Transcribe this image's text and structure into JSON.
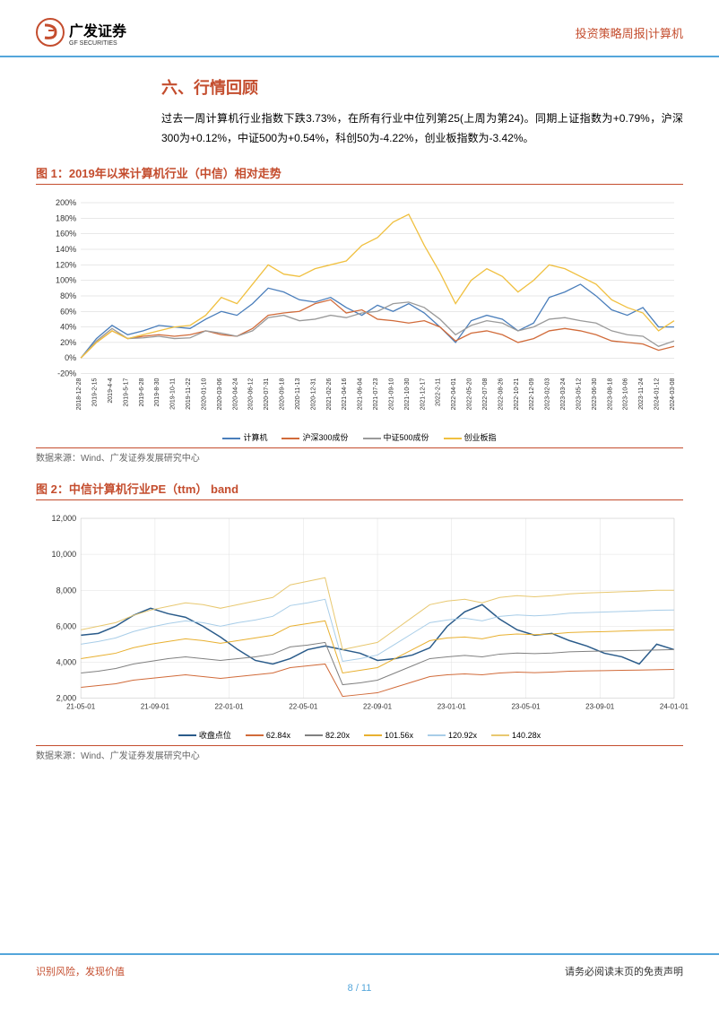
{
  "header": {
    "logo_cn": "广发证券",
    "logo_en": "GF SECURITIES",
    "right": "投资策略周报|计算机"
  },
  "section_title": "六、行情回顾",
  "body_paragraph": "过去一周计算机行业指数下跌3.73%，在所有行业中位列第25(上周为第24)。同期上证指数为+0.79%，沪深300为+0.12%，中证500为+0.54%，科创50为-4.22%，创业板指数为-3.42%。",
  "chart1": {
    "title": "图 1：2019年以来计算机行业（中信）相对走势",
    "type": "line",
    "ylim": [
      -20,
      200
    ],
    "ytick_step": 20,
    "yticks": [
      "-20%",
      "0%",
      "20%",
      "40%",
      "60%",
      "80%",
      "100%",
      "120%",
      "140%",
      "160%",
      "180%",
      "200%"
    ],
    "xticks": [
      "2018-12-28",
      "2019-2-15",
      "2019-4-4",
      "2019-5-17",
      "2019-6-28",
      "2019-8-30",
      "2019-10-11",
      "2019-11-22",
      "2020-01-10",
      "2020-03-06",
      "2020-04-24",
      "2020-06-12",
      "2020-07-31",
      "2020-09-18",
      "2020-11-13",
      "2020-12-31",
      "2021-02-26",
      "2021-04-16",
      "2021-06-04",
      "2021-07-23",
      "2021-09-10",
      "2021-10-30",
      "2021-12-17",
      "2022-2-11",
      "2022-04-01",
      "2022-05-20",
      "2022-07-08",
      "2022-08-26",
      "2022-10-21",
      "2022-12-09",
      "2023-02-03",
      "2023-03-24",
      "2023-05-12",
      "2023-06-30",
      "2023-08-18",
      "2023-10-06",
      "2023-11-24",
      "2024-01-12",
      "2024-03-08"
    ],
    "series": [
      {
        "name": "计算机",
        "color": "#4a7ebb",
        "data": [
          0,
          25,
          42,
          30,
          35,
          42,
          40,
          38,
          50,
          60,
          55,
          70,
          90,
          85,
          75,
          72,
          78,
          65,
          55,
          68,
          60,
          70,
          58,
          40,
          20,
          48,
          55,
          50,
          35,
          45,
          78,
          85,
          95,
          80,
          62,
          55,
          65,
          40,
          40
        ]
      },
      {
        "name": "沪深300成份",
        "color": "#d16b3a",
        "data": [
          0,
          20,
          35,
          25,
          28,
          30,
          28,
          30,
          35,
          30,
          28,
          38,
          55,
          58,
          60,
          70,
          75,
          58,
          62,
          50,
          48,
          45,
          48,
          40,
          22,
          32,
          35,
          30,
          20,
          25,
          35,
          38,
          35,
          30,
          22,
          20,
          18,
          10,
          15
        ]
      },
      {
        "name": "中证500成份",
        "color": "#9a9a9a",
        "data": [
          0,
          22,
          38,
          25,
          26,
          28,
          25,
          26,
          35,
          32,
          28,
          35,
          52,
          55,
          48,
          50,
          55,
          52,
          58,
          60,
          70,
          72,
          65,
          50,
          30,
          42,
          48,
          45,
          35,
          40,
          50,
          52,
          48,
          45,
          35,
          30,
          28,
          15,
          22
        ]
      },
      {
        "name": "创业板指",
        "color": "#f0c040",
        "data": [
          0,
          20,
          35,
          25,
          30,
          35,
          40,
          42,
          55,
          78,
          70,
          95,
          120,
          108,
          105,
          115,
          120,
          125,
          145,
          155,
          175,
          185,
          145,
          110,
          70,
          100,
          115,
          105,
          85,
          100,
          120,
          115,
          105,
          95,
          75,
          65,
          58,
          35,
          48
        ]
      }
    ],
    "background_color": "#ffffff",
    "grid_color": "#d0d0d0"
  },
  "chart2": {
    "title": "图 2：中信计算机行业PE（ttm） band",
    "type": "line",
    "ylim": [
      2000,
      12000
    ],
    "ytick_step": 2000,
    "yticks": [
      "2,000",
      "4,000",
      "6,000",
      "8,000",
      "10,000",
      "12,000"
    ],
    "xticks": [
      "21-05-01",
      "21-09-01",
      "22-01-01",
      "22-05-01",
      "22-09-01",
      "23-01-01",
      "23-05-01",
      "23-09-01",
      "24-01-01"
    ],
    "series": [
      {
        "name": "收盘点位",
        "color": "#2a5b8a",
        "width": 1.5,
        "data": [
          5500,
          5600,
          6000,
          6600,
          7000,
          6700,
          6500,
          6000,
          5400,
          4700,
          4100,
          3900,
          4200,
          4700,
          4900,
          4700,
          4500,
          4100,
          4200,
          4400,
          4800,
          6000,
          6800,
          7200,
          6400,
          5800,
          5500,
          5600,
          5200,
          4900,
          4500,
          4300,
          3900,
          5000,
          4700
        ]
      },
      {
        "name": "62.84x",
        "color": "#d16b3a",
        "width": 1,
        "data": [
          2600,
          2700,
          2800,
          3000,
          3100,
          3200,
          3300,
          3200,
          3100,
          3200,
          3300,
          3400,
          3700,
          3800,
          3900,
          2100,
          2200,
          2300,
          2600,
          2900,
          3200,
          3300,
          3350,
          3300,
          3400,
          3450,
          3420,
          3450,
          3500,
          3520,
          3530,
          3550,
          3560,
          3580,
          3600
        ]
      },
      {
        "name": "82.20x",
        "color": "#808080",
        "width": 1,
        "data": [
          3400,
          3500,
          3650,
          3900,
          4050,
          4200,
          4300,
          4200,
          4100,
          4200,
          4300,
          4450,
          4850,
          4950,
          5100,
          2750,
          2850,
          3000,
          3400,
          3800,
          4200,
          4300,
          4380,
          4300,
          4450,
          4510,
          4480,
          4510,
          4580,
          4600,
          4620,
          4640,
          4660,
          4680,
          4700
        ]
      },
      {
        "name": "101.56x",
        "color": "#e8b030",
        "width": 1,
        "data": [
          4200,
          4350,
          4500,
          4800,
          5000,
          5150,
          5300,
          5200,
          5050,
          5200,
          5350,
          5500,
          6000,
          6150,
          6300,
          3400,
          3550,
          3700,
          4200,
          4700,
          5200,
          5350,
          5400,
          5300,
          5500,
          5570,
          5530,
          5570,
          5650,
          5680,
          5700,
          5730,
          5760,
          5780,
          5800
        ]
      },
      {
        "name": "120.92x",
        "color": "#a8cde8",
        "width": 1,
        "data": [
          5000,
          5150,
          5350,
          5700,
          5950,
          6150,
          6300,
          6200,
          6000,
          6200,
          6350,
          6550,
          7150,
          7300,
          7500,
          4050,
          4200,
          4400,
          5000,
          5600,
          6200,
          6350,
          6450,
          6300,
          6550,
          6630,
          6580,
          6630,
          6730,
          6760,
          6790,
          6820,
          6850,
          6890,
          6900
        ]
      },
      {
        "name": "140.28x",
        "color": "#e8c870",
        "width": 1,
        "data": [
          5800,
          6000,
          6200,
          6600,
          6900,
          7100,
          7300,
          7200,
          7000,
          7200,
          7400,
          7600,
          8300,
          8500,
          8700,
          4700,
          4900,
          5100,
          5800,
          6500,
          7200,
          7400,
          7500,
          7300,
          7600,
          7700,
          7640,
          7700,
          7800,
          7850,
          7880,
          7920,
          7950,
          8000,
          8000
        ]
      }
    ],
    "background_color": "#ffffff",
    "grid_color": "#e0e0e0"
  },
  "data_source": "数据来源：Wind、广发证券发展研究中心",
  "footer": {
    "left": "识别风险，发现价值",
    "right": "请务必阅读末页的免责声明",
    "page": "8 / 11"
  }
}
